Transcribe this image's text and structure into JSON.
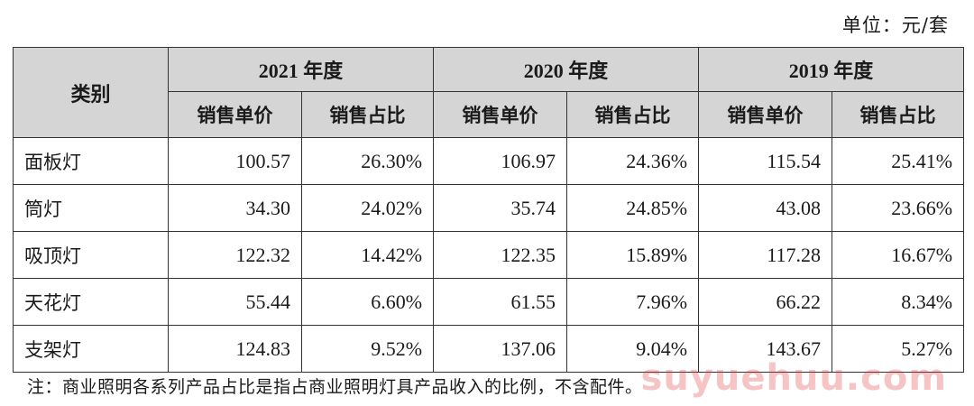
{
  "unit_label": "单位：元/套",
  "table": {
    "category_header": "类别",
    "years": [
      "2021 年度",
      "2020 年度",
      "2019 年度"
    ],
    "sub_headers": [
      "销售单价",
      "销售占比"
    ],
    "rows": [
      {
        "name": "面板灯",
        "cells": [
          "100.57",
          "26.30%",
          "106.97",
          "24.36%",
          "115.54",
          "25.41%"
        ]
      },
      {
        "name": "筒灯",
        "cells": [
          "34.30",
          "24.02%",
          "35.74",
          "24.85%",
          "43.08",
          "23.66%"
        ]
      },
      {
        "name": "吸顶灯",
        "cells": [
          "122.32",
          "14.42%",
          "122.35",
          "15.89%",
          "117.28",
          "16.67%"
        ]
      },
      {
        "name": "天花灯",
        "cells": [
          "55.44",
          "6.60%",
          "61.55",
          "7.96%",
          "66.22",
          "8.34%"
        ]
      },
      {
        "name": "支架灯",
        "cells": [
          "124.83",
          "9.52%",
          "137.06",
          "9.04%",
          "143.67",
          "5.27%"
        ]
      }
    ]
  },
  "note": "注：商业照明各系列产品占比是指占商业照明灯具产品收入的比例，不含配件。",
  "watermark": "suyuehuu.com",
  "colors": {
    "header_bg": "#d5d5d5",
    "border": "#333333",
    "watermark": "#e13c3c"
  }
}
